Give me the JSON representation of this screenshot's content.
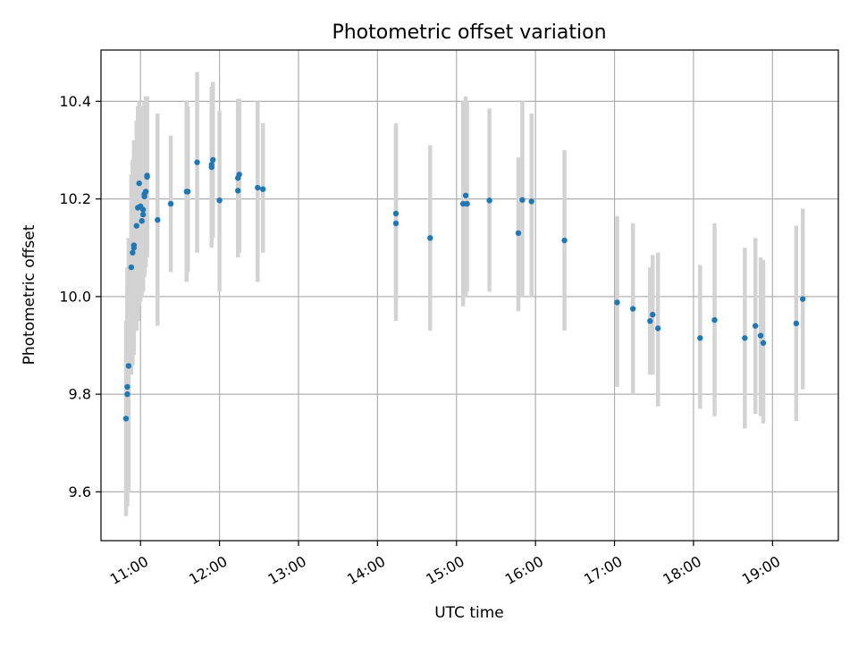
{
  "chart_data": {
    "type": "scatter",
    "title": "Photometric offset variation",
    "xlabel": "UTC time",
    "ylabel": "Photometric offset",
    "xlim": [
      "10:30",
      "19:50"
    ],
    "ylim": [
      9.5,
      10.505
    ],
    "grid": true,
    "x_ticks": [
      "11:00",
      "12:00",
      "13:00",
      "14:00",
      "15:00",
      "16:00",
      "17:00",
      "18:00",
      "19:00"
    ],
    "y_ticks": [
      9.6,
      9.8,
      10.0,
      10.2,
      10.4
    ],
    "y_tick_labels": [
      "9.6",
      "9.8",
      "10.0",
      "10.2",
      "10.4"
    ],
    "colors": {
      "points": "#1f77b4",
      "error_bars": "#d3d3d3"
    },
    "series": [
      {
        "x": [
          "10:49",
          "10:50",
          "10:50",
          "10:51",
          "10:53",
          "10:54",
          "10:55",
          "10:55",
          "10:57",
          "10:58",
          "10:59",
          "11:00",
          "11:01",
          "11:02",
          "11:02",
          "11:03",
          "11:03",
          "11:04",
          "11:05",
          "11:05",
          "11:13",
          "11:23",
          "11:35",
          "11:36",
          "11:43",
          "11:54",
          "11:54",
          "11:55",
          "12:00",
          "12:14",
          "12:14",
          "12:15",
          "12:29",
          "12:33",
          "14:14",
          "14:14",
          "14:40",
          "15:05",
          "15:07",
          "15:08",
          "15:25",
          "15:47",
          "15:50",
          "15:57",
          "16:22",
          "17:02",
          "17:14",
          "17:27",
          "17:29",
          "17:33",
          "18:05",
          "18:16",
          "18:39",
          "18:47",
          "18:51",
          "18:53",
          "19:18",
          "19:23"
        ],
        "y": [
          9.75,
          9.8,
          9.815,
          9.858,
          10.06,
          10.09,
          10.1,
          10.105,
          10.145,
          10.182,
          10.232,
          10.185,
          10.155,
          10.168,
          10.178,
          10.205,
          10.21,
          10.215,
          10.245,
          10.248,
          10.157,
          10.19,
          10.215,
          10.215,
          10.275,
          10.265,
          10.27,
          10.28,
          10.197,
          10.217,
          10.243,
          10.25,
          10.223,
          10.22,
          10.15,
          10.17,
          10.12,
          10.19,
          10.207,
          10.19,
          10.197,
          10.13,
          10.198,
          10.195,
          10.115,
          9.988,
          9.975,
          9.95,
          9.963,
          9.935,
          9.915,
          9.952,
          9.915,
          9.94,
          9.92,
          9.905,
          9.945,
          9.995
        ],
        "err_low": [
          9.55,
          9.57,
          9.58,
          9.6,
          9.84,
          9.86,
          9.88,
          9.89,
          9.93,
          9.95,
          9.98,
          9.99,
          10.0,
          10.01,
          10.02,
          10.04,
          10.05,
          10.06,
          10.08,
          10.09,
          9.94,
          10.05,
          10.03,
          10.05,
          10.09,
          10.1,
          10.11,
          10.12,
          10.01,
          10.08,
          10.1,
          10.09,
          10.03,
          10.09,
          9.95,
          9.99,
          9.93,
          9.98,
          10.0,
          10.01,
          10.01,
          9.97,
          10.0,
          10.0,
          9.93,
          9.815,
          9.8,
          9.84,
          9.84,
          9.775,
          9.77,
          9.755,
          9.73,
          9.76,
          9.755,
          9.74,
          9.745,
          9.81
        ],
        "err_high": [
          9.95,
          10.02,
          10.06,
          10.12,
          10.25,
          10.28,
          10.3,
          10.32,
          10.36,
          10.39,
          10.4,
          10.39,
          10.38,
          10.38,
          10.39,
          10.39,
          10.4,
          10.41,
          10.41,
          10.41,
          10.375,
          10.33,
          10.4,
          10.39,
          10.46,
          10.43,
          10.43,
          10.44,
          10.38,
          10.4,
          10.405,
          10.405,
          10.4,
          10.355,
          10.345,
          10.355,
          10.31,
          10.4,
          10.41,
          10.4,
          10.385,
          10.285,
          10.4,
          10.375,
          10.3,
          10.165,
          10.15,
          10.06,
          10.085,
          10.09,
          10.065,
          10.15,
          10.1,
          10.12,
          10.08,
          10.075,
          10.145,
          10.18
        ]
      }
    ]
  }
}
